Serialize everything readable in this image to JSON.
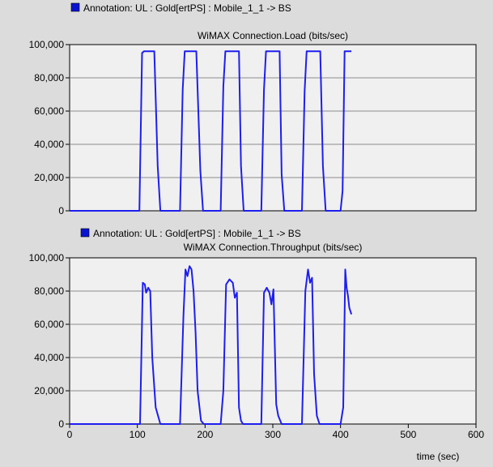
{
  "colors": {
    "background": "#dcdcdc",
    "plot_background": "#f0f0f0",
    "series": "#1e1ef0",
    "legend_swatch": "#0a14d0",
    "grid": "#8c8c8c"
  },
  "xaxis": {
    "label": "time (sec)"
  },
  "chart_data": [
    {
      "type": "line",
      "legend": "Annotation: UL : Gold[ertPS] : Mobile_1_1 -> BS",
      "title": "WiMAX Connection.Load (bits/sec)",
      "xlim": [
        0,
        600
      ],
      "ylim": [
        0,
        100000
      ],
      "yticks": [
        "0",
        "20,000",
        "40,000",
        "60,000",
        "80,000",
        "100,000"
      ],
      "grid": true,
      "series": [
        {
          "x": [
            0,
            103,
            107,
            110,
            115,
            120,
            125,
            130,
            134,
            163,
            167,
            170,
            178,
            183,
            187,
            193,
            197,
            223,
            227,
            230,
            240,
            245,
            250,
            253,
            257,
            283,
            287,
            290,
            300,
            305,
            310,
            313,
            317,
            343,
            347,
            350,
            360,
            365,
            370,
            374,
            378,
            400,
            403,
            406,
            409,
            412,
            416
          ],
          "y": [
            0,
            0,
            95000,
            96000,
            96000,
            96000,
            96000,
            27000,
            0,
            0,
            73000,
            96000,
            96000,
            96000,
            96000,
            24000,
            0,
            0,
            75000,
            96000,
            96000,
            96000,
            96000,
            27000,
            0,
            0,
            73000,
            96000,
            96000,
            96000,
            96000,
            22000,
            0,
            0,
            72000,
            96000,
            96000,
            96000,
            96000,
            27000,
            0,
            0,
            12000,
            96000,
            96000,
            96000,
            96000
          ]
        }
      ]
    },
    {
      "type": "line",
      "legend": "Annotation: UL : Gold[ertPS] : Mobile_1_1 -> BS",
      "title": "WiMAX Connection.Throughput (bits/sec)",
      "xlim": [
        0,
        600
      ],
      "xticks": [
        "0",
        "100",
        "200",
        "300",
        "400",
        "500",
        "600"
      ],
      "ylim": [
        0,
        100000
      ],
      "yticks": [
        "0",
        "20,000",
        "40,000",
        "60,000",
        "80,000",
        "100,000"
      ],
      "grid": true,
      "series": [
        {
          "x": [
            0,
            104,
            108,
            111,
            113,
            116,
            119,
            122,
            127,
            134,
            163,
            168,
            171,
            174,
            177,
            180,
            183,
            186,
            189,
            194,
            198,
            223,
            227,
            231,
            236,
            241,
            244,
            247,
            250,
            253,
            256,
            283,
            287,
            291,
            295,
            298,
            301,
            305,
            308,
            313,
            317,
            343,
            348,
            352,
            355,
            358,
            361,
            365,
            369,
            375,
            378,
            400,
            404,
            407,
            409,
            411,
            413,
            416
          ],
          "y": [
            0,
            0,
            85000,
            84000,
            79000,
            82000,
            80000,
            40000,
            10000,
            0,
            0,
            65000,
            93000,
            89000,
            95000,
            93000,
            80000,
            55000,
            20000,
            2000,
            0,
            0,
            20000,
            84000,
            87000,
            85000,
            76000,
            79000,
            10000,
            2000,
            0,
            0,
            79000,
            82000,
            79000,
            72000,
            81000,
            12000,
            5000,
            0,
            0,
            0,
            80000,
            93000,
            85000,
            88000,
            30000,
            5000,
            0,
            0,
            0,
            0,
            10000,
            93000,
            82000,
            77000,
            70000,
            66000
          ]
        }
      ]
    }
  ]
}
